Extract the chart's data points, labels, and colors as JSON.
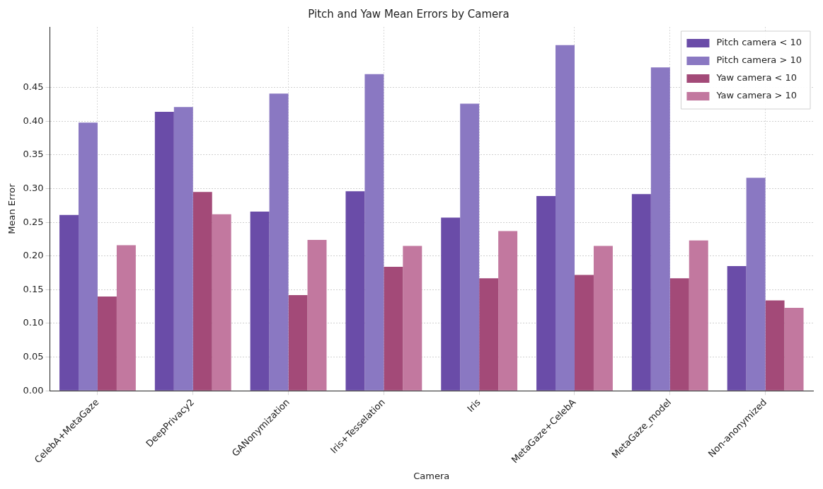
{
  "chart_data": {
    "type": "bar",
    "title": "Pitch and Yaw Mean Errors by Camera",
    "xlabel": "Camera",
    "ylabel": "Mean Error",
    "categories": [
      "CelebA+MetaGaze",
      "DeepPrivacy2",
      "GANonymization",
      "Iris+Tesselation",
      "Iris",
      "MetaGaze+CelebA",
      "MetaGaze_model",
      "Non-anonymized"
    ],
    "series": [
      {
        "name": "Pitch camera < 10",
        "color": "#6a4ca8",
        "values": [
          0.261,
          0.414,
          0.266,
          0.296,
          0.257,
          0.289,
          0.292,
          0.185
        ]
      },
      {
        "name": "Pitch camera > 10",
        "color": "#8a78c2",
        "values": [
          0.398,
          0.421,
          0.441,
          0.47,
          0.426,
          0.513,
          0.48,
          0.316
        ]
      },
      {
        "name": "Yaw camera < 10",
        "color": "#a34a78",
        "values": [
          0.14,
          0.295,
          0.142,
          0.184,
          0.167,
          0.172,
          0.167,
          0.134
        ]
      },
      {
        "name": "Yaw camera > 10",
        "color": "#c2789f",
        "values": [
          0.216,
          0.262,
          0.224,
          0.215,
          0.237,
          0.215,
          0.223,
          0.123
        ]
      }
    ],
    "ylim": [
      0,
      0.54
    ],
    "yticks": [
      {
        "value": 0,
        "label": "0.00"
      },
      {
        "value": 0.05,
        "label": "0.05"
      },
      {
        "value": 0.1,
        "label": "0.10"
      },
      {
        "value": 0.15,
        "label": "0.15"
      },
      {
        "value": 0.2,
        "label": "0.20"
      },
      {
        "value": 0.25,
        "label": "0.25"
      },
      {
        "value": 0.3,
        "label": "0.30"
      },
      {
        "value": 0.35,
        "label": "0.35"
      },
      {
        "value": 0.4,
        "label": "0.40"
      },
      {
        "value": 0.45,
        "label": "0.45"
      }
    ],
    "grid": true,
    "legend": "top right"
  }
}
